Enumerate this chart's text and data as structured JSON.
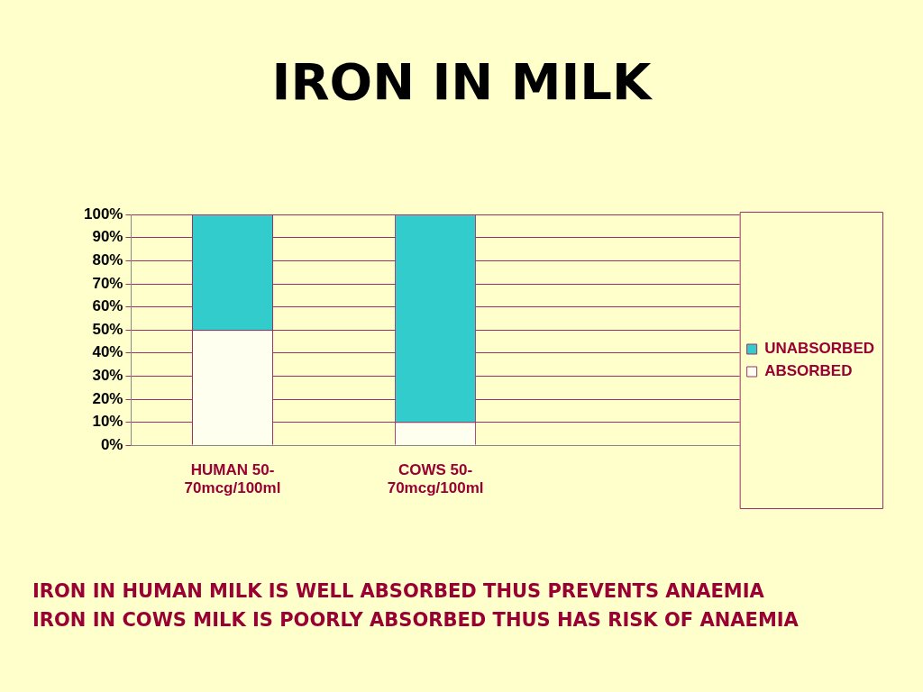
{
  "chart_data": {
    "type": "bar",
    "title": "IRON IN MILK",
    "categories": [
      "HUMAN 50-70mcg/100ml",
      "COWS 50-70mcg/100ml",
      null
    ],
    "stacked": true,
    "series": [
      {
        "name": "ABSORBED",
        "color": "#fffff0",
        "values": [
          50,
          10,
          null
        ]
      },
      {
        "name": "UNABSORBED",
        "color": "#33cccc",
        "values": [
          50,
          90,
          null
        ]
      }
    ],
    "ylim": [
      0,
      100
    ],
    "yticks": [
      {
        "value": 0,
        "label": "0%"
      },
      {
        "value": 10,
        "label": "10%"
      },
      {
        "value": 20,
        "label": "20%"
      },
      {
        "value": 30,
        "label": "30%"
      },
      {
        "value": 40,
        "label": "40%"
      },
      {
        "value": 50,
        "label": "50%"
      },
      {
        "value": 60,
        "label": "60%"
      },
      {
        "value": 70,
        "label": "70%"
      },
      {
        "value": 80,
        "label": "80%"
      },
      {
        "value": 90,
        "label": "90%"
      },
      {
        "value": 100,
        "label": "100%"
      }
    ],
    "grid": "y",
    "legend": "right",
    "annotations": [
      "IRON IN HUMAN MILK IS WELL ABSORBED THUS PREVENTS ANAEMIA",
      "IRON IN COWS MILK IS POORLY ABSORBED THUS HAS RISK OF ANAEMIA"
    ]
  }
}
